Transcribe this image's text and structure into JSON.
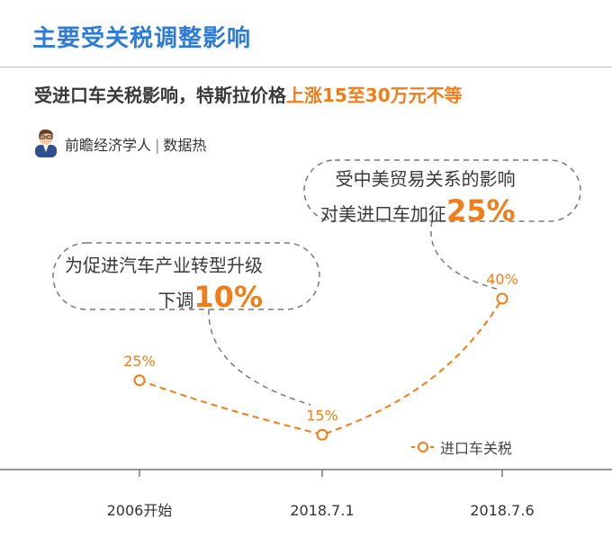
{
  "header": {
    "title": "主要受关税调整影响",
    "subtitle_prefix": "受进口车关税影响，特斯拉价格",
    "subtitle_highlight": "上涨15至30万元不等"
  },
  "credit": {
    "author": "前瞻经济学人",
    "separator": "|",
    "source": "数据热"
  },
  "callouts": [
    {
      "line1": "受中美贸易关系的影响",
      "line2_prefix": "对美进口车加征",
      "line2_value": "25%"
    },
    {
      "line1": "为促进汽车产业转型升级",
      "line2_prefix": "下调",
      "line2_value": "10%"
    }
  ],
  "colors": {
    "accent": "#f07d1a",
    "title": "#2e7bd6",
    "bubble_border": "#777777",
    "axis": "#555555"
  },
  "chart_data": {
    "type": "line",
    "categories": [
      "2006开始",
      "2018.7.1",
      "2018.7.6"
    ],
    "series": [
      {
        "name": "进口车关税",
        "values": [
          25,
          15,
          40
        ],
        "labels": [
          "25%",
          "15%",
          "40%"
        ]
      }
    ],
    "ylim": [
      0,
      45
    ],
    "line_style": "dashed",
    "grid": false,
    "legend": "bottom-right"
  }
}
